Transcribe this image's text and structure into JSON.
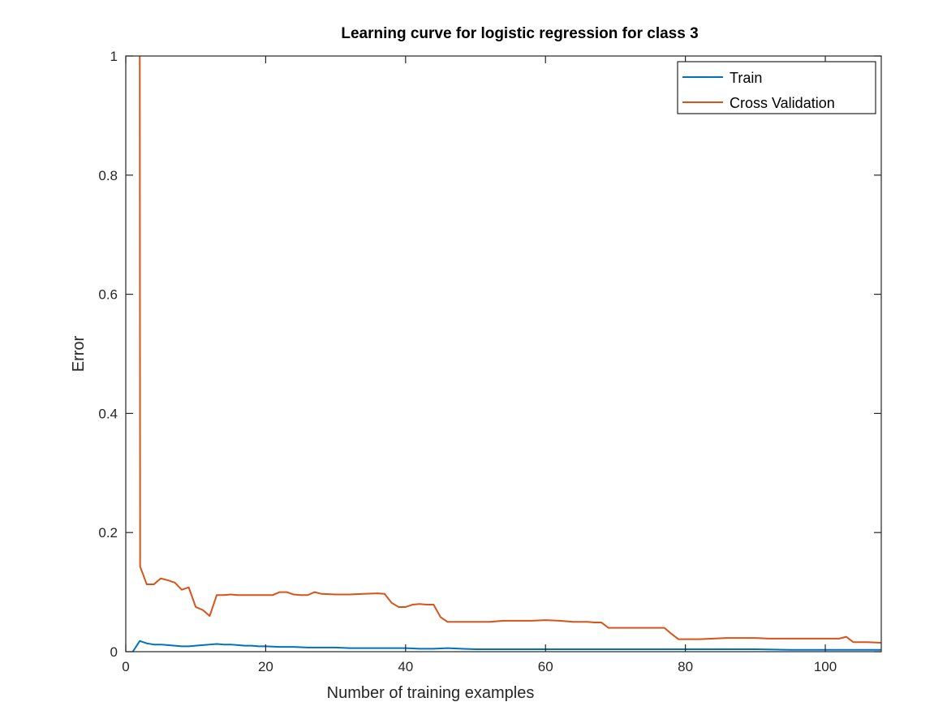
{
  "chart_data": {
    "type": "line",
    "title": "Learning curve for logistic regression for class 3",
    "xlabel": "Number of training examples",
    "ylabel": "Error",
    "xlim": [
      0,
      108
    ],
    "ylim": [
      0,
      1
    ],
    "xticks": [
      0,
      20,
      40,
      60,
      80,
      100
    ],
    "yticks": [
      0,
      0.2,
      0.4,
      0.6,
      0.8,
      1
    ],
    "ytick_labels": [
      "0",
      "0.2",
      "0.4",
      "0.6",
      "0.8",
      "1"
    ],
    "grid": false,
    "legend": "top-right",
    "series": [
      {
        "name": "Train",
        "color": "#0072BD",
        "points": [
          [
            1,
            0
          ],
          [
            2,
            0.018
          ],
          [
            3,
            0.014
          ],
          [
            4,
            0.012
          ],
          [
            5,
            0.012
          ],
          [
            6,
            0.011
          ],
          [
            7,
            0.01
          ],
          [
            8,
            0.009
          ],
          [
            9,
            0.009
          ],
          [
            10,
            0.01
          ],
          [
            11,
            0.011
          ],
          [
            12,
            0.012
          ],
          [
            13,
            0.013
          ],
          [
            14,
            0.012
          ],
          [
            15,
            0.012
          ],
          [
            16,
            0.011
          ],
          [
            17,
            0.01
          ],
          [
            18,
            0.01
          ],
          [
            19,
            0.009
          ],
          [
            20,
            0.009
          ],
          [
            22,
            0.008
          ],
          [
            24,
            0.008
          ],
          [
            26,
            0.007
          ],
          [
            28,
            0.007
          ],
          [
            30,
            0.007
          ],
          [
            32,
            0.006
          ],
          [
            34,
            0.006
          ],
          [
            36,
            0.006
          ],
          [
            38,
            0.006
          ],
          [
            40,
            0.006
          ],
          [
            42,
            0.005
          ],
          [
            44,
            0.005
          ],
          [
            46,
            0.006
          ],
          [
            48,
            0.005
          ],
          [
            50,
            0.004
          ],
          [
            55,
            0.004
          ],
          [
            60,
            0.004
          ],
          [
            65,
            0.004
          ],
          [
            70,
            0.004
          ],
          [
            75,
            0.004
          ],
          [
            80,
            0.004
          ],
          [
            85,
            0.004
          ],
          [
            90,
            0.004
          ],
          [
            95,
            0.003
          ],
          [
            100,
            0.003
          ],
          [
            104,
            0.003
          ],
          [
            108,
            0.003
          ]
        ]
      },
      {
        "name": "Cross Validation",
        "color": "#D95319",
        "points": [
          [
            2,
            1
          ],
          [
            2.05,
            0.143
          ],
          [
            3,
            0.113
          ],
          [
            4,
            0.113
          ],
          [
            5,
            0.123
          ],
          [
            6,
            0.12
          ],
          [
            7,
            0.116
          ],
          [
            8,
            0.104
          ],
          [
            9,
            0.108
          ],
          [
            10,
            0.075
          ],
          [
            11,
            0.07
          ],
          [
            12,
            0.06
          ],
          [
            13,
            0.095
          ],
          [
            14,
            0.095
          ],
          [
            15,
            0.096
          ],
          [
            16,
            0.095
          ],
          [
            18,
            0.095
          ],
          [
            20,
            0.095
          ],
          [
            21,
            0.095
          ],
          [
            22,
            0.1
          ],
          [
            23,
            0.1
          ],
          [
            24,
            0.096
          ],
          [
            25,
            0.095
          ],
          [
            26,
            0.095
          ],
          [
            27,
            0.1
          ],
          [
            28,
            0.097
          ],
          [
            30,
            0.096
          ],
          [
            32,
            0.096
          ],
          [
            34,
            0.097
          ],
          [
            36,
            0.098
          ],
          [
            37,
            0.097
          ],
          [
            38,
            0.082
          ],
          [
            39,
            0.075
          ],
          [
            40,
            0.075
          ],
          [
            41,
            0.079
          ],
          [
            42,
            0.08
          ],
          [
            43,
            0.079
          ],
          [
            44,
            0.079
          ],
          [
            45,
            0.058
          ],
          [
            46,
            0.05
          ],
          [
            48,
            0.05
          ],
          [
            50,
            0.05
          ],
          [
            52,
            0.05
          ],
          [
            54,
            0.052
          ],
          [
            56,
            0.052
          ],
          [
            58,
            0.052
          ],
          [
            60,
            0.053
          ],
          [
            62,
            0.052
          ],
          [
            64,
            0.05
          ],
          [
            66,
            0.05
          ],
          [
            67,
            0.049
          ],
          [
            68,
            0.049
          ],
          [
            69,
            0.04
          ],
          [
            70,
            0.04
          ],
          [
            72,
            0.04
          ],
          [
            74,
            0.04
          ],
          [
            76,
            0.04
          ],
          [
            77,
            0.04
          ],
          [
            78,
            0.03
          ],
          [
            79,
            0.021
          ],
          [
            80,
            0.021
          ],
          [
            82,
            0.021
          ],
          [
            84,
            0.022
          ],
          [
            86,
            0.023
          ],
          [
            88,
            0.023
          ],
          [
            90,
            0.023
          ],
          [
            92,
            0.022
          ],
          [
            94,
            0.022
          ],
          [
            96,
            0.022
          ],
          [
            98,
            0.022
          ],
          [
            100,
            0.022
          ],
          [
            102,
            0.022
          ],
          [
            103,
            0.025
          ],
          [
            104,
            0.016
          ],
          [
            105,
            0.016
          ],
          [
            106,
            0.016
          ],
          [
            108,
            0.015
          ]
        ]
      }
    ]
  }
}
